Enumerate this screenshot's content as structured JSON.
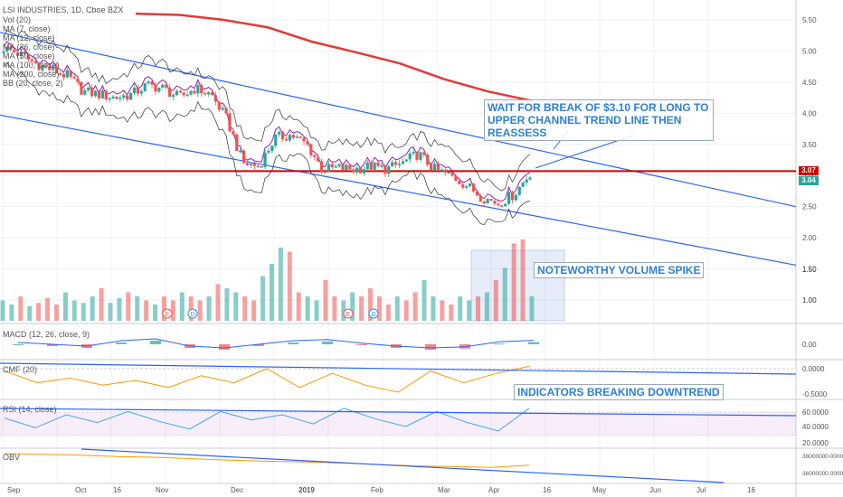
{
  "header": {
    "symbol": "LSI INDUSTRIES, 1D, Cboe BZX",
    "study_labels": [
      "Vol (20)",
      "MA (7, close)",
      "MA (12, close)",
      "MA (26, close)",
      "MA (50, close)",
      "MA (100, close)",
      "MA (200, close)",
      "BB (20, close, 2)"
    ]
  },
  "annotations": {
    "wait_break": "WAIT FOR BREAK OF $3.10 FOR LONG TO UPPER CHANNEL TREND LINE THEN REASSESS",
    "volume_spike": "NOTEWORTHY  VOLUME SPIKE",
    "indicators": "INDICATORS BREAKING DOWNTREND"
  },
  "price_tags": {
    "resistance": "3.07",
    "last": "3.04"
  },
  "pane_labels": {
    "macd": "MACD (12, 26, close, 9)",
    "cmf": "CMF (20)",
    "rsi": "RSI (14, close)",
    "obv": "OBV"
  },
  "colors": {
    "up": "#26a69a",
    "down": "#ef5350",
    "ma200": "#e53935",
    "resistance": "#d50000",
    "trend": "#2962ff",
    "bb": "#333333"
  },
  "chart_data": [
    {
      "type": "candlestick",
      "title": "LSI INDUSTRIES, 1D, Cboe BZX",
      "y_axis": {
        "ticks": [
          5.5,
          5.0,
          4.5,
          4.0,
          3.5,
          3.0,
          2.5,
          2.0,
          1.5,
          1.0
        ],
        "tick_labels": [
          "5.50",
          "5.00",
          "4.50",
          "4.00",
          "3.50",
          "3.00",
          "2.50",
          "2.00",
          "1.50",
          "1.00"
        ]
      },
      "x_axis": {
        "tick_labels": [
          "Sep",
          "Oct",
          "16",
          "Nov",
          "Dec",
          "2019",
          "Feb",
          "Mar",
          "Apr",
          "16",
          "May",
          "Jun",
          "Jul",
          "16"
        ]
      },
      "close_path": [
        5.05,
        4.95,
        4.8,
        4.7,
        4.6,
        4.35,
        4.3,
        4.25,
        4.3,
        4.45,
        4.4,
        4.25,
        4.4,
        4.3,
        3.9,
        3.2,
        3.15,
        3.6,
        3.65,
        3.5,
        3.1,
        3.12,
        3.1,
        3.15,
        3.1,
        3.2,
        3.35,
        3.1,
        3.0,
        2.85,
        2.65,
        2.55,
        2.7,
        3.04
      ],
      "ma200": [
        5.6,
        5.58,
        5.5,
        5.38,
        5.15,
        4.98,
        4.8,
        4.55,
        4.35,
        4.2
      ],
      "horizontal_level": 3.07,
      "last_price": 3.04
    },
    {
      "type": "bar",
      "title": "Vol (20)",
      "series": [
        {
          "name": "Vol (20)",
          "values": [
            0.25,
            0.2,
            0.3,
            0.18,
            0.22,
            0.28,
            0.2,
            0.35,
            0.25,
            0.22,
            0.3,
            0.4,
            0.22,
            0.28,
            0.35,
            0.3,
            0.25,
            0.2,
            0.3,
            0.25,
            0.35,
            0.3,
            0.25,
            0.3,
            0.45,
            0.4,
            0.35,
            0.3,
            0.25,
            0.55,
            0.7,
            0.9,
            0.85,
            0.35,
            0.3,
            0.25,
            0.5,
            0.3,
            0.25,
            0.35,
            0.3,
            0.4,
            0.3,
            0.2,
            0.3,
            0.25,
            0.35,
            0.5,
            0.3,
            0.25,
            0.2,
            0.3,
            0.25,
            0.3,
            0.35,
            0.5,
            0.65,
            0.95,
            1.0,
            0.3
          ]
        }
      ],
      "annotation_box": "NOTEWORTHY  VOLUME SPIKE"
    },
    {
      "type": "line",
      "title": "MACD (12, 26, close, 9)",
      "y_axis": {
        "tick_labels": [
          "0.00"
        ]
      },
      "series": [
        {
          "name": "MACD",
          "values": [
            0.0,
            -0.05,
            -0.1,
            0.05,
            0.1,
            -0.1,
            -0.15,
            -0.05,
            0.05,
            0.08,
            -0.02,
            -0.1,
            -0.15,
            -0.12,
            0.02,
            0.06
          ]
        }
      ]
    },
    {
      "type": "line",
      "title": "CMF (20)",
      "y_axis": {
        "tick_labels": [
          "0.0000",
          "-0.5000"
        ]
      },
      "series": [
        {
          "name": "CMF (20)",
          "values": [
            -0.05,
            -0.3,
            -0.2,
            -0.35,
            -0.25,
            -0.4,
            -0.15,
            -0.3,
            0.0,
            -0.4,
            -0.1,
            -0.35,
            -0.5,
            -0.05,
            -0.3,
            -0.1,
            0.05
          ]
        }
      ]
    },
    {
      "type": "line",
      "title": "RSI (14, close)",
      "y_axis": {
        "tick_labels": [
          "60.0000",
          "40.0000",
          "20.0000"
        ]
      },
      "series": [
        {
          "name": "RSI (14, close)",
          "values": [
            45,
            30,
            50,
            38,
            55,
            40,
            28,
            55,
            42,
            50,
            36,
            60,
            44,
            32,
            55,
            38,
            25,
            60
          ]
        }
      ]
    },
    {
      "type": "line",
      "title": "OBV",
      "y_axis": {
        "tick_labels": [
          "38000000.0000",
          "36000000.0000"
        ]
      },
      "series": [
        {
          "name": "OBV",
          "values": [
            38000000,
            37900000,
            37800000,
            37600000,
            37500000,
            37300000,
            37100000,
            36950000,
            36850000,
            36700000,
            36500000,
            36300000,
            36200000,
            36100000,
            36400000
          ]
        }
      ]
    }
  ]
}
